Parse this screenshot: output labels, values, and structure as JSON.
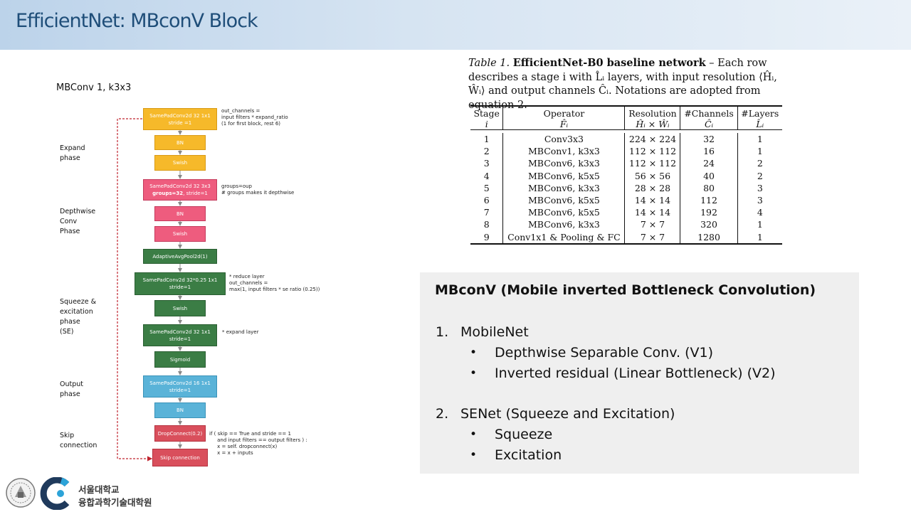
{
  "header": {
    "title": "EfficientNet: MBconV Block"
  },
  "diagram": {
    "title": "MBConv 1, k3x3",
    "phases": {
      "expand": [
        "Expand",
        "phase"
      ],
      "depthwise": [
        "Depthwise",
        "Conv",
        "Phase"
      ],
      "se": [
        "Squeeze &",
        "excitation",
        "phase",
        "(SE)"
      ],
      "output": [
        "Output",
        "phase"
      ],
      "skip": [
        "Skip",
        "connection"
      ]
    },
    "blocks": {
      "b1": [
        "SamePadConv2d 32 1x1",
        "stride =1"
      ],
      "b2": "BN",
      "b3": "Swish",
      "b4": [
        "SamePadConv2d 32 3x3",
        "groups=32",
        ", stride=1"
      ],
      "b5": "BN",
      "b6": "Swish",
      "b7": "AdaptiveAvgPool2d(1)",
      "b8": [
        "SamePadConv2d 32*0.25  1x1",
        "stride=1"
      ],
      "b9": "Swish",
      "b10": [
        "SamePadConv2d 32 1x1",
        "stride=1"
      ],
      "b11": "Sigmoid",
      "b12": [
        "SamePadConv2d 16 1x1",
        "stride=1"
      ],
      "b13": "BN",
      "b14": "DropConnect(0.2)",
      "b15": "Skip connection"
    },
    "notes": {
      "n1": "out_channels =\ninput filters * expand_ratio\n(1 for first block, rest 6)",
      "n2": "groups=oup\n# groups makes it depthwise",
      "n3": "* reduce layer\nout_channels =\nmax(1, input filters * se ratio (0.25))",
      "n4": "* expand layer",
      "n5": "if ( skip == True and stride == 1\n     and input filters == output filters ) :\n     x = self. dropconnect(x)\n     x = x + inputs"
    }
  },
  "table": {
    "caption_label": "Table 1.",
    "caption_bold": "EfficientNet-B0 baseline network",
    "caption_rest": " – Each row describes a stage i with L̂ᵢ layers, with input resolution ⟨Ĥᵢ, Ŵᵢ⟩ and output channels Ĉᵢ. Notations are adopted from equation 2.",
    "headers": [
      {
        "label": "Stage",
        "sub": "i"
      },
      {
        "label": "Operator",
        "sub": "F̂ᵢ"
      },
      {
        "label": "Resolution",
        "sub": "Ĥᵢ × Ŵᵢ"
      },
      {
        "label": "#Channels",
        "sub": "Ĉᵢ"
      },
      {
        "label": "#Layers",
        "sub": "L̂ᵢ"
      }
    ],
    "rows": [
      [
        "1",
        "Conv3x3",
        "224 × 224",
        "32",
        "1"
      ],
      [
        "2",
        "MBConv1, k3x3",
        "112 × 112",
        "16",
        "1"
      ],
      [
        "3",
        "MBConv6, k3x3",
        "112 × 112",
        "24",
        "2"
      ],
      [
        "4",
        "MBConv6, k5x5",
        "56 × 56",
        "40",
        "2"
      ],
      [
        "5",
        "MBConv6, k3x3",
        "28 × 28",
        "80",
        "3"
      ],
      [
        "6",
        "MBConv6, k5x5",
        "14 × 14",
        "112",
        "3"
      ],
      [
        "7",
        "MBConv6, k5x5",
        "14 × 14",
        "192",
        "4"
      ],
      [
        "8",
        "MBConv6, k3x3",
        "7 × 7",
        "320",
        "1"
      ],
      [
        "9",
        "Conv1x1 & Pooling & FC",
        "7 × 7",
        "1280",
        "1"
      ]
    ]
  },
  "summary": {
    "title": "MBconV (Mobile inverted Bottleneck Convolution)",
    "item1": {
      "num": "1.",
      "label": "MobileNet",
      "bullets": [
        "Depthwise Separable Conv. (V1)",
        "Inverted residual (Linear Bottleneck) (V2)"
      ]
    },
    "item2": {
      "num": "2.",
      "label": "SENet (Squeeze and Excitation)",
      "bullets": [
        "Squeeze",
        "Excitation"
      ]
    }
  },
  "footer": {
    "line1": "서울대학교",
    "line2": "융합과학기술대학원"
  },
  "icons": {
    "seal": "university-seal-logo",
    "c_logo": "c-letter-logo",
    "bullet": "bullet-dot"
  }
}
